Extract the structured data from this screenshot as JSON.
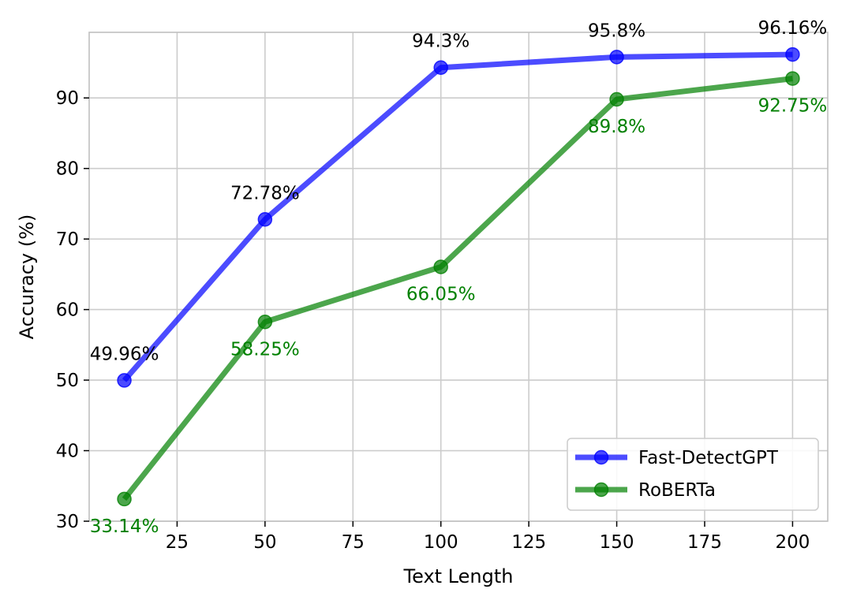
{
  "chart_data": {
    "type": "line",
    "xlabel": "Text Length",
    "ylabel": "Accuracy (%)",
    "xlim": [
      0,
      210
    ],
    "ylim": [
      30,
      99.3
    ],
    "x_ticks": [
      25,
      50,
      75,
      100,
      125,
      150,
      175,
      200
    ],
    "y_ticks": [
      30,
      40,
      50,
      60,
      70,
      80,
      90
    ],
    "grid": true,
    "legend_position": "bottom-right",
    "series": [
      {
        "name": "Fast-DetectGPT",
        "color": "#0000ff",
        "label_color": "#000000",
        "label_placement": "above",
        "marker": "circle",
        "x": [
          10,
          50,
          100,
          150,
          200
        ],
        "y": [
          49.96,
          72.78,
          94.3,
          95.8,
          96.16
        ],
        "labels": [
          "49.96%",
          "72.78%",
          "94.3%",
          "95.8%",
          "96.16%"
        ]
      },
      {
        "name": "RoBERTa",
        "color": "#008000",
        "label_color": "#008000",
        "label_placement": "below",
        "marker": "circle",
        "x": [
          10,
          50,
          100,
          150,
          200
        ],
        "y": [
          33.14,
          58.25,
          66.05,
          89.8,
          92.75
        ],
        "labels": [
          "33.14%",
          "58.25%",
          "66.05%",
          "89.8%",
          "92.75%"
        ]
      }
    ]
  }
}
